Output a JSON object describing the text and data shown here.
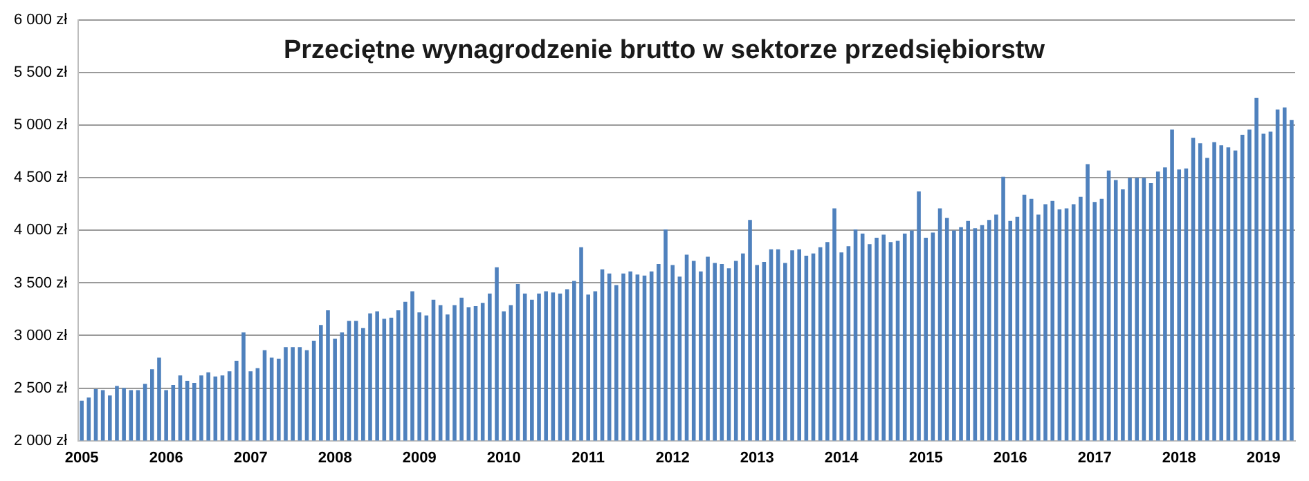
{
  "chart_data": {
    "type": "bar",
    "title": "Przeciętne wynagrodzenie brutto w sektorze przedsiębiorstw",
    "categories": [
      "2005",
      null,
      null,
      null,
      null,
      null,
      null,
      null,
      null,
      null,
      null,
      null,
      "2006",
      null,
      null,
      null,
      null,
      null,
      null,
      null,
      null,
      null,
      null,
      null,
      "2007",
      null,
      null,
      null,
      null,
      null,
      null,
      null,
      null,
      null,
      null,
      null,
      "2008",
      null,
      null,
      null,
      null,
      null,
      null,
      null,
      null,
      null,
      null,
      null,
      "2009",
      null,
      null,
      null,
      null,
      null,
      null,
      null,
      null,
      null,
      null,
      null,
      "2010",
      null,
      null,
      null,
      null,
      null,
      null,
      null,
      null,
      null,
      null,
      null,
      "2011",
      null,
      null,
      null,
      null,
      null,
      null,
      null,
      null,
      null,
      null,
      null,
      "2012",
      null,
      null,
      null,
      null,
      null,
      null,
      null,
      null,
      null,
      null,
      null,
      "2013",
      null,
      null,
      null,
      null,
      null,
      null,
      null,
      null,
      null,
      null,
      null,
      "2014",
      null,
      null,
      null,
      null,
      null,
      null,
      null,
      null,
      null,
      null,
      null,
      "2015",
      null,
      null,
      null,
      null,
      null,
      null,
      null,
      null,
      null,
      null,
      null,
      "2016",
      null,
      null,
      null,
      null,
      null,
      null,
      null,
      null,
      null,
      null,
      null,
      "2017",
      null,
      null,
      null,
      null,
      null,
      null,
      null,
      null,
      null,
      null,
      null,
      "2018",
      null,
      null,
      null,
      null,
      null,
      null,
      null,
      null,
      null,
      null,
      null,
      "2019",
      null,
      null,
      null,
      null
    ],
    "values": [
      2380,
      2410,
      2490,
      2480,
      2430,
      2520,
      2500,
      2480,
      2480,
      2540,
      2680,
      2790,
      2480,
      2530,
      2620,
      2570,
      2550,
      2620,
      2650,
      2610,
      2620,
      2660,
      2760,
      3030,
      2660,
      2690,
      2860,
      2790,
      2780,
      2890,
      2890,
      2890,
      2860,
      2950,
      3100,
      3240,
      2970,
      3030,
      3140,
      3140,
      3070,
      3210,
      3230,
      3160,
      3170,
      3240,
      3320,
      3420,
      3220,
      3190,
      3340,
      3290,
      3200,
      3290,
      3360,
      3270,
      3280,
      3310,
      3400,
      3650,
      3230,
      3290,
      3490,
      3400,
      3340,
      3400,
      3420,
      3410,
      3400,
      3440,
      3520,
      3840,
      3390,
      3420,
      3630,
      3590,
      3480,
      3590,
      3610,
      3580,
      3570,
      3610,
      3680,
      4010,
      3670,
      3560,
      3770,
      3710,
      3610,
      3750,
      3690,
      3680,
      3640,
      3710,
      3780,
      4100,
      3670,
      3700,
      3820,
      3820,
      3690,
      3810,
      3820,
      3760,
      3780,
      3840,
      3890,
      4210,
      3790,
      3850,
      4010,
      3970,
      3870,
      3930,
      3960,
      3890,
      3900,
      3970,
      4000,
      4370,
      3930,
      3980,
      4210,
      4120,
      4000,
      4030,
      4090,
      4020,
      4050,
      4100,
      4150,
      4510,
      4090,
      4130,
      4340,
      4300,
      4150,
      4250,
      4280,
      4200,
      4210,
      4250,
      4320,
      4630,
      4270,
      4300,
      4570,
      4480,
      4390,
      4500,
      4500,
      4500,
      4450,
      4560,
      4600,
      4960,
      4580,
      4590,
      4880,
      4830,
      4690,
      4840,
      4810,
      4790,
      4760,
      4910,
      4960,
      5260,
      4920,
      4940,
      5150,
      5170,
      5050
    ],
    "color": "#4f81bd",
    "ylim": [
      2000,
      6000
    ],
    "yticks": [
      {
        "value": 2000,
        "label": "2 000 zł"
      },
      {
        "value": 2500,
        "label": "2 500 zł"
      },
      {
        "value": 3000,
        "label": "3 000 zł"
      },
      {
        "value": 3500,
        "label": "3 500 zł"
      },
      {
        "value": 4000,
        "label": "4 000 zł"
      },
      {
        "value": 4500,
        "label": "4 500 zł"
      },
      {
        "value": 5000,
        "label": "5 000 zł"
      },
      {
        "value": 5500,
        "label": "5 500 zł"
      },
      {
        "value": 6000,
        "label": "6 000 zł"
      }
    ],
    "grid": "y",
    "legend": false
  }
}
